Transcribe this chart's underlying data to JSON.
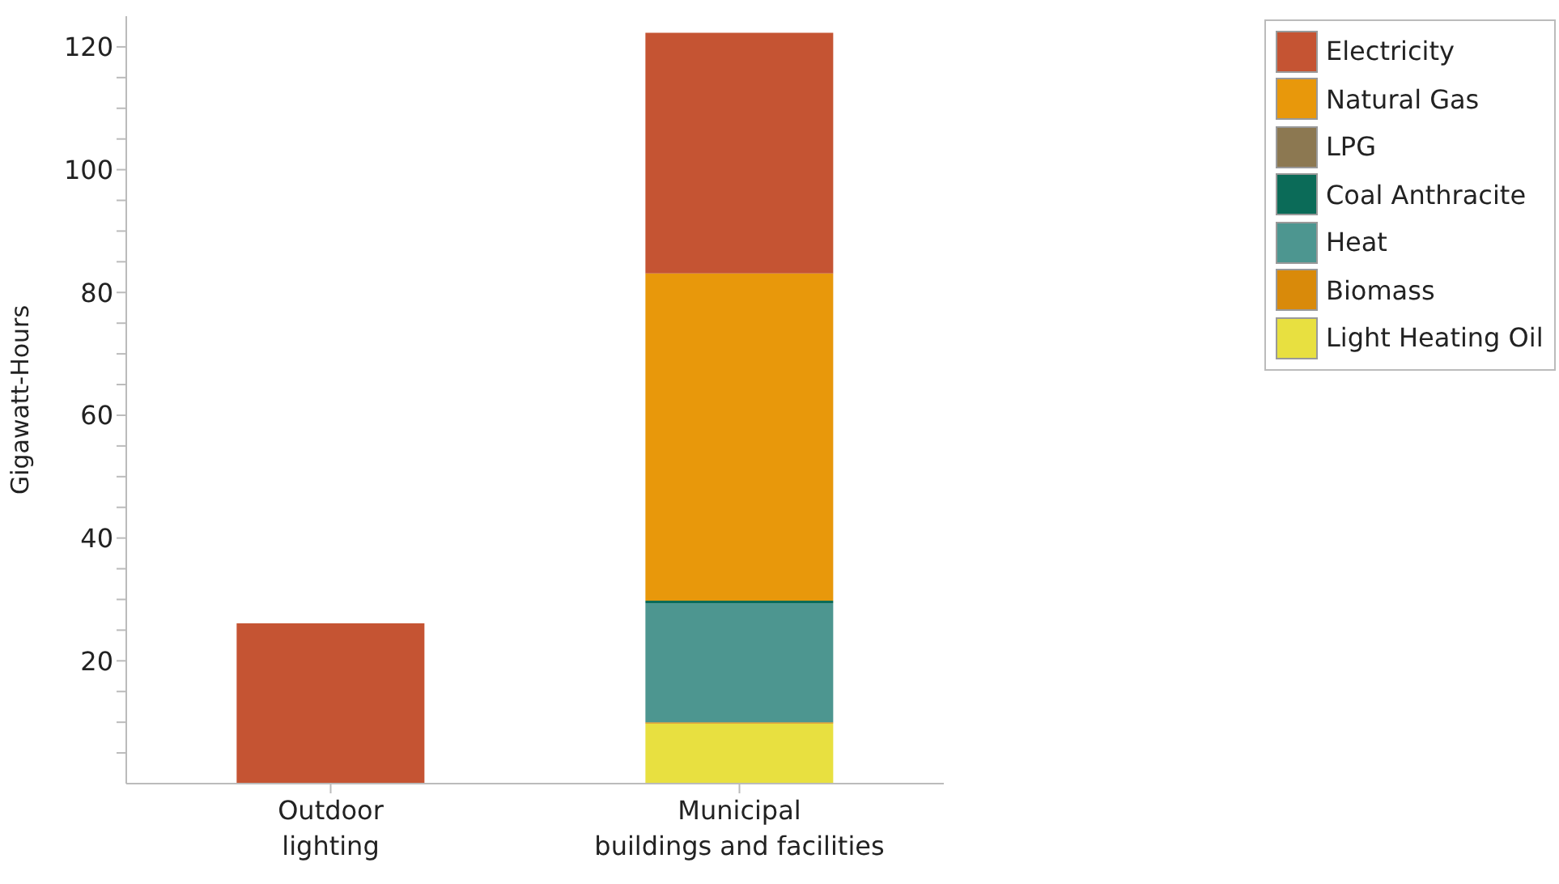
{
  "chart_data": {
    "type": "bar",
    "stacked": true,
    "ylabel": "Gigawatt-Hours",
    "categories": [
      "Outdoor\nlighting",
      "Municipal\nbuildings and facilities"
    ],
    "series": [
      {
        "name": "Light Heating Oil",
        "color": "#e8e040",
        "values": [
          null,
          9.8
        ]
      },
      {
        "name": "Biomass",
        "color": "#d98a0a",
        "values": [
          null,
          0.2
        ]
      },
      {
        "name": "Heat",
        "color": "#4d9690",
        "values": [
          null,
          19.4
        ]
      },
      {
        "name": "Coal Anthracite",
        "color": "#0b6b58",
        "values": [
          null,
          0.4
        ]
      },
      {
        "name": "LPG",
        "color": "#8c7851",
        "values": [
          null,
          0
        ]
      },
      {
        "name": "Natural Gas",
        "color": "#e8980b",
        "values": [
          null,
          53.3
        ]
      },
      {
        "name": "Electricity",
        "color": "#c55433",
        "values": [
          26.1,
          39.2
        ]
      }
    ],
    "ylim": [
      0,
      125
    ],
    "yticks": [
      {
        "value": 5,
        "label": null
      },
      {
        "value": 10,
        "label": null
      },
      {
        "value": 15,
        "label": null
      },
      20,
      {
        "value": 25,
        "label": null
      },
      {
        "value": 30,
        "label": null
      },
      {
        "value": 35,
        "label": null
      },
      40,
      {
        "value": 45,
        "label": null
      },
      {
        "value": 50,
        "label": null
      },
      {
        "value": 55,
        "label": null
      },
      60,
      {
        "value": 65,
        "label": null
      },
      {
        "value": 70,
        "label": null
      },
      {
        "value": 75,
        "label": null
      },
      80,
      {
        "value": 85,
        "label": null
      },
      {
        "value": 90,
        "label": null
      },
      {
        "value": 95,
        "label": null
      },
      100,
      {
        "value": 105,
        "label": null
      },
      {
        "value": 110,
        "label": null
      },
      {
        "value": 115,
        "label": null
      },
      120
    ],
    "grid": false,
    "legend": "top right"
  }
}
